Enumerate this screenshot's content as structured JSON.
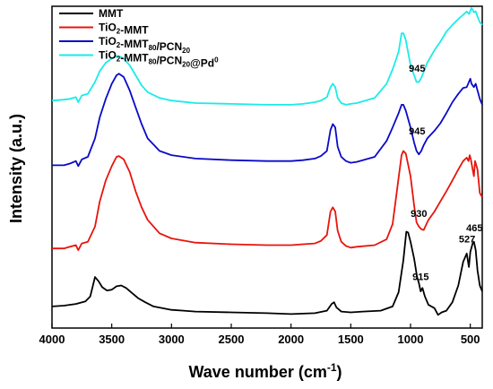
{
  "chart_data": {
    "type": "line",
    "xlabel": "Wave number (cm",
    "xlabel_sup": "-1",
    "xlabel_end": ")",
    "ylabel": "Intensity (a.u.)",
    "xlim": [
      4000,
      400
    ],
    "x_reversed": true,
    "y_ticks_shown": false,
    "grid": false,
    "legend_position": "top-left",
    "x_ticks": [
      4000,
      3500,
      3000,
      2500,
      2000,
      1500,
      1000,
      500
    ],
    "series": [
      {
        "name_parts": [
          [
            "MMT",
            ""
          ]
        ],
        "color": "#000000",
        "points": [
          [
            4000,
            15
          ],
          [
            3900,
            16
          ],
          [
            3800,
            18
          ],
          [
            3720,
            21
          ],
          [
            3680,
            27
          ],
          [
            3640,
            50
          ],
          [
            3610,
            45
          ],
          [
            3580,
            38
          ],
          [
            3540,
            34
          ],
          [
            3500,
            35
          ],
          [
            3460,
            39
          ],
          [
            3420,
            40
          ],
          [
            3380,
            37
          ],
          [
            3330,
            31
          ],
          [
            3280,
            25
          ],
          [
            3220,
            20
          ],
          [
            3150,
            15
          ],
          [
            3000,
            11
          ],
          [
            2900,
            10
          ],
          [
            2800,
            9
          ],
          [
            2500,
            8
          ],
          [
            2200,
            7
          ],
          [
            2000,
            6
          ],
          [
            1800,
            7
          ],
          [
            1700,
            10
          ],
          [
            1660,
            18
          ],
          [
            1640,
            20
          ],
          [
            1620,
            14
          ],
          [
            1580,
            9
          ],
          [
            1500,
            8
          ],
          [
            1400,
            9
          ],
          [
            1250,
            10
          ],
          [
            1150,
            15
          ],
          [
            1100,
            32
          ],
          [
            1060,
            70
          ],
          [
            1035,
            104
          ],
          [
            1020,
            103
          ],
          [
            1000,
            92
          ],
          [
            970,
            72
          ],
          [
            945,
            50
          ],
          [
            930,
            43
          ],
          [
            915,
            33
          ],
          [
            900,
            37
          ],
          [
            880,
            27
          ],
          [
            850,
            17
          ],
          [
            800,
            13
          ],
          [
            770,
            5
          ],
          [
            740,
            8
          ],
          [
            700,
            10
          ],
          [
            650,
            20
          ],
          [
            600,
            40
          ],
          [
            560,
            68
          ],
          [
            530,
            78
          ],
          [
            512,
            62
          ],
          [
            500,
            80
          ],
          [
            480,
            90
          ],
          [
            470,
            92
          ],
          [
            455,
            82
          ],
          [
            440,
            58
          ],
          [
            420,
            40
          ],
          [
            400,
            33
          ]
        ]
      },
      {
        "name_parts": [
          [
            "TiO",
            ""
          ],
          [
            "2",
            "sub"
          ],
          [
            "-MMT",
            ""
          ]
        ],
        "color": "#e8140c",
        "points": [
          [
            4000,
            84
          ],
          [
            3900,
            84
          ],
          [
            3850,
            86
          ],
          [
            3800,
            88
          ],
          [
            3780,
            82
          ],
          [
            3750,
            90
          ],
          [
            3700,
            92
          ],
          [
            3640,
            110
          ],
          [
            3600,
            140
          ],
          [
            3550,
            165
          ],
          [
            3500,
            182
          ],
          [
            3460,
            193
          ],
          [
            3440,
            194
          ],
          [
            3400,
            190
          ],
          [
            3350,
            175
          ],
          [
            3300,
            152
          ],
          [
            3250,
            133
          ],
          [
            3200,
            118
          ],
          [
            3100,
            102
          ],
          [
            3000,
            96
          ],
          [
            2800,
            91
          ],
          [
            2500,
            89
          ],
          [
            2200,
            88
          ],
          [
            2000,
            88
          ],
          [
            1900,
            89
          ],
          [
            1800,
            90
          ],
          [
            1750,
            93
          ],
          [
            1700,
            100
          ],
          [
            1670,
            128
          ],
          [
            1650,
            133
          ],
          [
            1630,
            128
          ],
          [
            1610,
            105
          ],
          [
            1580,
            92
          ],
          [
            1540,
            87
          ],
          [
            1500,
            85
          ],
          [
            1450,
            86
          ],
          [
            1300,
            88
          ],
          [
            1200,
            95
          ],
          [
            1150,
            113
          ],
          [
            1100,
            168
          ],
          [
            1075,
            195
          ],
          [
            1060,
            200
          ],
          [
            1040,
            197
          ],
          [
            1000,
            170
          ],
          [
            970,
            135
          ],
          [
            950,
            115
          ],
          [
            930,
            110
          ],
          [
            910,
            107
          ],
          [
            890,
            106
          ],
          [
            870,
            112
          ],
          [
            850,
            118
          ],
          [
            800,
            128
          ],
          [
            750,
            140
          ],
          [
            700,
            152
          ],
          [
            650,
            165
          ],
          [
            600,
            178
          ],
          [
            560,
            188
          ],
          [
            530,
            192
          ],
          [
            515,
            188
          ],
          [
            505,
            195
          ],
          [
            495,
            190
          ],
          [
            480,
            178
          ],
          [
            470,
            170
          ],
          [
            460,
            188
          ],
          [
            440,
            178
          ],
          [
            420,
            150
          ],
          [
            400,
            145
          ]
        ]
      },
      {
        "name_parts": [
          [
            "TiO",
            ""
          ],
          [
            "2",
            "sub"
          ],
          [
            "-MMT",
            ""
          ],
          [
            "80",
            "sub"
          ],
          [
            "/PCN",
            ""
          ],
          [
            "20",
            "sub"
          ]
        ],
        "color": "#0a0ac8",
        "points": [
          [
            4000,
            183
          ],
          [
            3900,
            183
          ],
          [
            3850,
            185
          ],
          [
            3800,
            188
          ],
          [
            3780,
            182
          ],
          [
            3750,
            190
          ],
          [
            3700,
            193
          ],
          [
            3640,
            215
          ],
          [
            3600,
            240
          ],
          [
            3550,
            262
          ],
          [
            3500,
            280
          ],
          [
            3460,
            290
          ],
          [
            3440,
            292
          ],
          [
            3400,
            288
          ],
          [
            3350,
            272
          ],
          [
            3300,
            252
          ],
          [
            3250,
            232
          ],
          [
            3200,
            215
          ],
          [
            3100,
            200
          ],
          [
            3000,
            195
          ],
          [
            2800,
            191
          ],
          [
            2500,
            189
          ],
          [
            2200,
            188
          ],
          [
            2000,
            188
          ],
          [
            1900,
            189
          ],
          [
            1800,
            191
          ],
          [
            1750,
            194
          ],
          [
            1700,
            200
          ],
          [
            1670,
            225
          ],
          [
            1650,
            232
          ],
          [
            1630,
            228
          ],
          [
            1610,
            205
          ],
          [
            1580,
            193
          ],
          [
            1540,
            188
          ],
          [
            1500,
            186
          ],
          [
            1450,
            187
          ],
          [
            1300,
            193
          ],
          [
            1200,
            212
          ],
          [
            1150,
            228
          ],
          [
            1100,
            245
          ],
          [
            1075,
            255
          ],
          [
            1060,
            255
          ],
          [
            1040,
            248
          ],
          [
            1000,
            228
          ],
          [
            970,
            210
          ],
          [
            950,
            200
          ],
          [
            930,
            196
          ],
          [
            910,
            200
          ],
          [
            890,
            207
          ],
          [
            860,
            215
          ],
          [
            800,
            224
          ],
          [
            750,
            233
          ],
          [
            700,
            245
          ],
          [
            650,
            258
          ],
          [
            600,
            268
          ],
          [
            560,
            275
          ],
          [
            530,
            276
          ],
          [
            500,
            286
          ],
          [
            490,
            280
          ],
          [
            470,
            276
          ],
          [
            455,
            280
          ],
          [
            440,
            272
          ],
          [
            420,
            262
          ],
          [
            400,
            255
          ]
        ]
      },
      {
        "name_parts": [
          [
            "TiO",
            ""
          ],
          [
            "2",
            "sub"
          ],
          [
            "-MMT",
            ""
          ],
          [
            "80",
            "sub"
          ],
          [
            "/PCN",
            ""
          ],
          [
            "20",
            "sub"
          ],
          [
            "@Pd",
            ""
          ],
          [
            "0",
            "sup"
          ]
        ],
        "color": "#19ece8",
        "points": [
          [
            4000,
            260
          ],
          [
            3900,
            261
          ],
          [
            3850,
            262
          ],
          [
            3800,
            264
          ],
          [
            3780,
            258
          ],
          [
            3750,
            266
          ],
          [
            3700,
            268
          ],
          [
            3640,
            282
          ],
          [
            3600,
            295
          ],
          [
            3550,
            305
          ],
          [
            3500,
            310
          ],
          [
            3460,
            313
          ],
          [
            3440,
            313
          ],
          [
            3400,
            310
          ],
          [
            3350,
            302
          ],
          [
            3300,
            290
          ],
          [
            3250,
            278
          ],
          [
            3200,
            270
          ],
          [
            3100,
            263
          ],
          [
            3000,
            260
          ],
          [
            2800,
            257
          ],
          [
            2500,
            256
          ],
          [
            2200,
            255
          ],
          [
            2000,
            255
          ],
          [
            1900,
            256
          ],
          [
            1800,
            258
          ],
          [
            1750,
            260
          ],
          [
            1700,
            264
          ],
          [
            1670,
            276
          ],
          [
            1650,
            280
          ],
          [
            1630,
            276
          ],
          [
            1610,
            263
          ],
          [
            1580,
            257
          ],
          [
            1540,
            255
          ],
          [
            1500,
            256
          ],
          [
            1450,
            257
          ],
          [
            1300,
            263
          ],
          [
            1200,
            280
          ],
          [
            1150,
            297
          ],
          [
            1100,
            318
          ],
          [
            1075,
            340
          ],
          [
            1060,
            340
          ],
          [
            1040,
            332
          ],
          [
            1000,
            302
          ],
          [
            970,
            290
          ],
          [
            950,
            282
          ],
          [
            930,
            282
          ],
          [
            910,
            287
          ],
          [
            890,
            294
          ],
          [
            860,
            305
          ],
          [
            800,
            320
          ],
          [
            750,
            330
          ],
          [
            700,
            342
          ],
          [
            650,
            350
          ],
          [
            600,
            357
          ],
          [
            560,
            362
          ],
          [
            530,
            366
          ],
          [
            510,
            363
          ],
          [
            490,
            370
          ],
          [
            480,
            368
          ],
          [
            470,
            365
          ],
          [
            455,
            366
          ],
          [
            440,
            360
          ],
          [
            420,
            353
          ],
          [
            400,
            350
          ]
        ]
      }
    ],
    "annotations": [
      {
        "text": "465",
        "x": 465,
        "y": 98
      },
      {
        "text": "527",
        "x": 527,
        "y": 85
      },
      {
        "text": "915",
        "x": 915,
        "y": 40
      },
      {
        "text": "930",
        "x": 930,
        "y": 115
      },
      {
        "text": "945",
        "x": 945,
        "y": 213
      },
      {
        "text": "945",
        "x": 945,
        "y": 288
      }
    ]
  }
}
